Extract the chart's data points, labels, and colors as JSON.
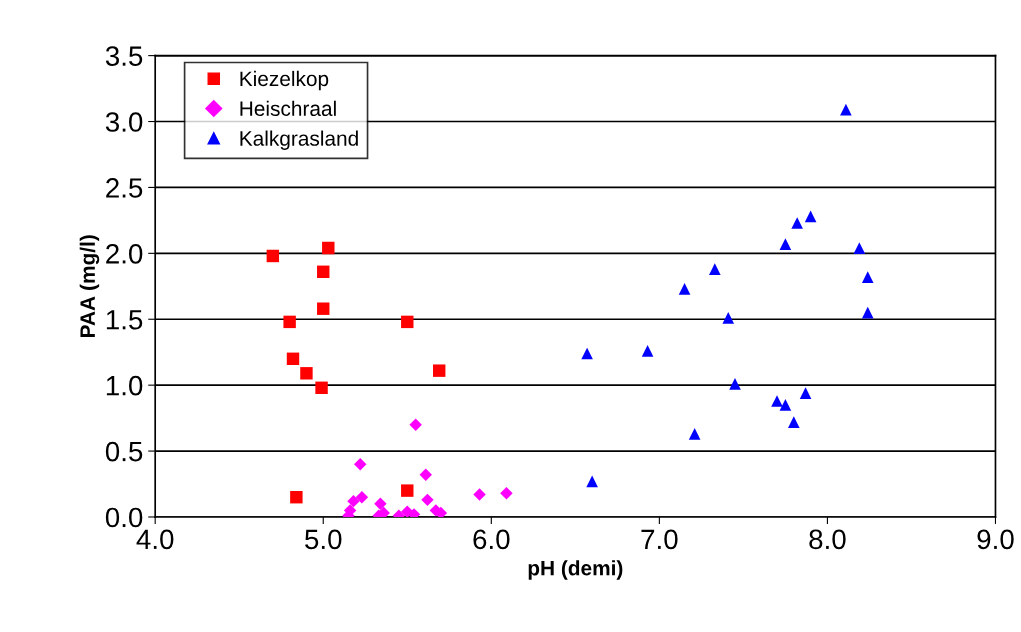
{
  "chart_data": {
    "type": "scatter",
    "xlabel": "pH (demi)",
    "ylabel": "PAA (mg/l)",
    "xlim": [
      4.0,
      9.0
    ],
    "xticks": [
      {
        "value": 4,
        "label": "4.0"
      },
      {
        "value": 5,
        "label": "5.0"
      },
      {
        "value": 6,
        "label": "6.0"
      },
      {
        "value": 7,
        "label": "7.0"
      },
      {
        "value": 8,
        "label": "8.0"
      },
      {
        "value": 9,
        "label": "9.0"
      }
    ],
    "ylim": [
      0,
      3.5
    ],
    "yticks": [
      {
        "value": 0,
        "label": "0.0"
      },
      0.5,
      {
        "value": 1,
        "label": "1.0"
      },
      1.5,
      {
        "value": 2,
        "label": "2.0"
      },
      2.5,
      {
        "value": 3,
        "label": "3.0"
      },
      3.5
    ],
    "grid": "y",
    "legend": "top left",
    "series": [
      {
        "name": "Kiezelkop",
        "color": "#ff0000",
        "marker": "square",
        "x": [
          4.7,
          4.8,
          4.82,
          4.9,
          4.99,
          5.0,
          5.0,
          5.03,
          5.5,
          5.69,
          4.84,
          5.5
        ],
        "values": [
          1.98,
          1.48,
          1.2,
          1.09,
          0.98,
          1.86,
          1.58,
          2.04,
          1.48,
          1.11,
          0.15,
          0.2
        ]
      },
      {
        "name": "Heischraal",
        "color": "#ff00ff",
        "marker": "diamond",
        "x": [
          5.55,
          5.22,
          5.61,
          5.62,
          5.93,
          6.09,
          5.18,
          5.23,
          5.34,
          5.36,
          5.7,
          5.15,
          5.16,
          5.33,
          5.45,
          5.5,
          5.54,
          5.67
        ],
        "values": [
          0.7,
          0.4,
          0.32,
          0.13,
          0.17,
          0.18,
          0.12,
          0.15,
          0.1,
          0.03,
          0.03,
          0.01,
          0.05,
          0.01,
          0.01,
          0.04,
          0.02,
          0.05
        ]
      },
      {
        "name": "Kalkgrasland",
        "color": "#0000ff",
        "marker": "triangle",
        "x": [
          8.11,
          7.9,
          7.82,
          7.75,
          8.19,
          7.33,
          7.15,
          8.24,
          8.24,
          7.41,
          6.57,
          6.93,
          7.45,
          7.7,
          7.75,
          7.87,
          7.8,
          7.21,
          6.6
        ],
        "values": [
          3.09,
          2.28,
          2.23,
          2.07,
          2.04,
          1.88,
          1.73,
          1.82,
          1.55,
          1.51,
          1.24,
          1.26,
          1.01,
          0.88,
          0.85,
          0.94,
          0.72,
          0.63,
          0.27
        ]
      }
    ]
  }
}
